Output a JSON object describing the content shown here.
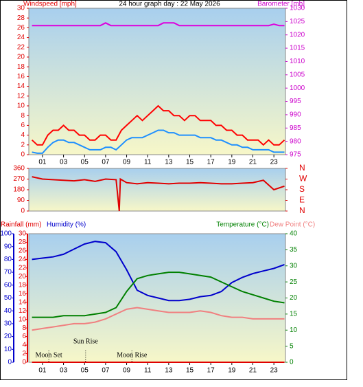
{
  "chart_data": [
    {
      "type": "line",
      "title": "24 hour graph day : 22 May 2026",
      "y_label": "Windspeed [mph]",
      "y_color": "#e00000",
      "y2_label": "Barometer [mb]",
      "y2_color": "#cc00cc",
      "xlim": [
        -0.3,
        24.1
      ],
      "xticks": [
        {
          "value": 1,
          "label": "01"
        },
        {
          "value": 3,
          "label": "03"
        },
        {
          "value": 5,
          "label": "05"
        },
        {
          "value": 7,
          "label": "07"
        },
        {
          "value": 9,
          "label": "09"
        },
        {
          "value": 11,
          "label": "11"
        },
        {
          "value": 13,
          "label": "13"
        },
        {
          "value": 15,
          "label": "15"
        },
        {
          "value": 17,
          "label": "17"
        },
        {
          "value": 19,
          "label": "19"
        },
        {
          "value": 21,
          "label": "21"
        },
        {
          "value": 23,
          "label": "23"
        }
      ],
      "ylim": [
        0,
        30
      ],
      "yticks": [
        0,
        2,
        4,
        6,
        8,
        10,
        12,
        14,
        16,
        18,
        20,
        22,
        24,
        26,
        28,
        30
      ],
      "y2lim": [
        975,
        1030
      ],
      "y2ticks": [
        975,
        980,
        985,
        990,
        995,
        1000,
        1005,
        1010,
        1015,
        1020,
        1025,
        1030
      ],
      "x": [
        0,
        0.5,
        1,
        1.5,
        2,
        2.5,
        3,
        3.5,
        4,
        4.5,
        5,
        5.5,
        6,
        6.5,
        7,
        7.5,
        8,
        8.5,
        9,
        9.5,
        10,
        10.5,
        11,
        11.5,
        12,
        12.5,
        13,
        13.5,
        14,
        14.5,
        15,
        15.5,
        16,
        16.5,
        17,
        17.5,
        18,
        18.5,
        19,
        19.5,
        20,
        20.5,
        21,
        21.5,
        22,
        22.5,
        23,
        23.5,
        24
      ],
      "series": [
        {
          "color": "#ff0000",
          "values": [
            3,
            2,
            2,
            4,
            5,
            5,
            6,
            5,
            5,
            4,
            4,
            3,
            3,
            4,
            4,
            3,
            3,
            5,
            6,
            7,
            8,
            7,
            8,
            9,
            10,
            9,
            9,
            8,
            8,
            7,
            8,
            8,
            7,
            7,
            7,
            6,
            6,
            5,
            5,
            4,
            4,
            3,
            3,
            3,
            2,
            3,
            2,
            2,
            3
          ]
        },
        {
          "color": "#1e8fff",
          "values": [
            0.5,
            0.3,
            0.3,
            1.5,
            2.5,
            3,
            3,
            2.5,
            2.5,
            2,
            1.5,
            1,
            1,
            1,
            1.5,
            1.5,
            1,
            2,
            3,
            3.5,
            3.5,
            3.5,
            4,
            4.5,
            5,
            5,
            4.5,
            4.5,
            4,
            4,
            4,
            4,
            3.5,
            3.5,
            3.5,
            3,
            3,
            2.5,
            2,
            2,
            1.5,
            1.5,
            1,
            1,
            1,
            1,
            0.5,
            0.5,
            0.5
          ]
        },
        {
          "color": "#dd00dd",
          "axis": "y2",
          "values": [
            1023.5,
            1023.5,
            1023.5,
            1023.5,
            1023.5,
            1023.5,
            1023.5,
            1023.5,
            1023.5,
            1023.5,
            1023.5,
            1023.5,
            1023.5,
            1023.5,
            1024.5,
            1023.5,
            1023.5,
            1023.5,
            1023.5,
            1023.5,
            1023.5,
            1023.5,
            1023.5,
            1023.5,
            1023.5,
            1024.5,
            1024.5,
            1024.5,
            1023.5,
            1023.5,
            1023.5,
            1023.5,
            1023.5,
            1023.5,
            1023.5,
            1023.5,
            1023.5,
            1023.5,
            1023.5,
            1023.5,
            1023.5,
            1023.5,
            1023.5,
            1023.5,
            1023.5,
            1023.5,
            1024,
            1023.5,
            1023.5
          ]
        }
      ]
    },
    {
      "type": "line",
      "y_color": "#e00000",
      "y2_color": "#e00000",
      "xlim": [
        -0.3,
        24.1
      ],
      "ylim": [
        0,
        360
      ],
      "yticks": [
        0,
        90,
        180,
        270,
        360
      ],
      "y2lim": [
        0,
        360
      ],
      "y2ticks": [
        {
          "value": 0,
          "label": "N"
        },
        {
          "value": 90,
          "label": "E"
        },
        {
          "value": 180,
          "label": "S"
        },
        {
          "value": 270,
          "label": "W"
        },
        {
          "value": 360,
          "label": "N"
        }
      ],
      "x": [
        0,
        1,
        2,
        3,
        4,
        5,
        6,
        7,
        8,
        8.3,
        8.4,
        9,
        10,
        11,
        12,
        13,
        14,
        15,
        16,
        17,
        18,
        19,
        20,
        21,
        22,
        23,
        24
      ],
      "series": [
        {
          "color": "#e00000",
          "values": [
            290,
            270,
            265,
            260,
            255,
            265,
            250,
            270,
            265,
            0,
            270,
            240,
            230,
            240,
            235,
            230,
            235,
            235,
            240,
            235,
            230,
            230,
            235,
            240,
            260,
            180,
            210
          ]
        }
      ]
    },
    {
      "type": "line",
      "y_color": "#0000cc",
      "y3_color": "#e00000",
      "y2_color": "#008000",
      "xlim": [
        -0.3,
        24.1
      ],
      "xticks": [
        {
          "value": 1,
          "label": "01"
        },
        {
          "value": 3,
          "label": "03"
        },
        {
          "value": 5,
          "label": "05"
        },
        {
          "value": 7,
          "label": "07"
        },
        {
          "value": 9,
          "label": "09"
        },
        {
          "value": 11,
          "label": "11"
        },
        {
          "value": 13,
          "label": "13"
        },
        {
          "value": 15,
          "label": "15"
        },
        {
          "value": 17,
          "label": "17"
        },
        {
          "value": 19,
          "label": "19"
        },
        {
          "value": 21,
          "label": "21"
        },
        {
          "value": 23,
          "label": "23"
        }
      ],
      "ylim": [
        0,
        100
      ],
      "yticks": [
        0,
        10,
        20,
        30,
        40,
        50,
        60,
        70,
        80,
        90,
        100
      ],
      "y3lim": [
        0,
        30
      ],
      "y3ticks": [
        0,
        2,
        4,
        6,
        8,
        10,
        12,
        14,
        16,
        18,
        20,
        22,
        24,
        26,
        28,
        30
      ],
      "y2lim": [
        0,
        40
      ],
      "y2ticks": [
        0,
        5,
        10,
        15,
        20,
        25,
        30,
        35,
        40
      ],
      "x": [
        0,
        1,
        2,
        3,
        4,
        5,
        6,
        7,
        8,
        9,
        10,
        11,
        12,
        13,
        14,
        15,
        16,
        17,
        18,
        19,
        20,
        21,
        22,
        23,
        24
      ],
      "series": [
        {
          "name": "Rainfall (mm)",
          "color": "#e00000",
          "axis": "y3",
          "values": [
            0,
            0,
            0,
            0,
            0,
            0,
            0,
            0,
            0,
            0,
            0,
            0,
            0,
            0,
            0,
            0,
            0,
            0,
            0,
            0,
            0,
            0,
            0,
            0,
            0
          ]
        },
        {
          "name": "Humidity (%)",
          "color": "#0000cc",
          "values": [
            80,
            81,
            82,
            84,
            88,
            92,
            94,
            93,
            86,
            72,
            56,
            52,
            50,
            48,
            48,
            49,
            51,
            52,
            55,
            62,
            66,
            69,
            71,
            73,
            76
          ]
        },
        {
          "name": "Temperature (°C)",
          "color": "#008000",
          "axis": "y2",
          "values": [
            14,
            14,
            14,
            14.5,
            14.5,
            14.5,
            15,
            15.5,
            17,
            22,
            26,
            27,
            27.5,
            28,
            28,
            27.5,
            27,
            26.5,
            25,
            23.5,
            22,
            21,
            20,
            19,
            18.5
          ]
        },
        {
          "name": "Dew Point (°C)",
          "color": "#f08080",
          "axis": "y2",
          "values": [
            10,
            10.5,
            11,
            11.5,
            12,
            12,
            12.5,
            13.5,
            15,
            16.5,
            17,
            16.5,
            16,
            15.5,
            15.5,
            15.5,
            16,
            15.5,
            14.5,
            14,
            14,
            13.5,
            13.5,
            13.5,
            13.5
          ]
        }
      ],
      "annotations": [
        {
          "text": "Moon Set",
          "x": 1.6
        },
        {
          "text": "Sun Rise",
          "x": 5.1
        },
        {
          "text": "Moon Rise",
          "x": 9.5
        }
      ]
    }
  ]
}
